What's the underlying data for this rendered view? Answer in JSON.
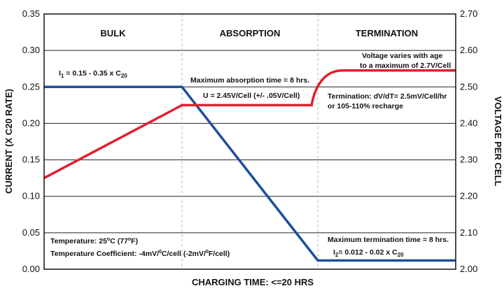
{
  "chart_data": {
    "type": "line",
    "title": "",
    "xlabel": "CHARGING TIME: <=20 HRS",
    "ylabel_left": "CURRENT (X C20 RATE)",
    "ylabel_right": "VOLTAGE PER CELL",
    "y_left": {
      "range": [
        0,
        0.35
      ],
      "ticks": [
        "0.00",
        "0.05",
        "0.10",
        "0.15",
        "0.20",
        "0.25",
        "0.30",
        "0.35"
      ]
    },
    "y_right": {
      "range": [
        2.0,
        2.7
      ],
      "ticks": [
        "2.00",
        "2.10",
        "2.20",
        "2.30",
        "2.40",
        "2.50",
        "2.60",
        "2.70"
      ]
    },
    "x_range": [
      0,
      20
    ],
    "grid": true,
    "phases": [
      {
        "label": "BULK",
        "x_start": 0,
        "x_end": 6.7
      },
      {
        "label": "ABSORPTION",
        "x_start": 6.7,
        "x_end": 13.3
      },
      {
        "label": "TERMINATION",
        "x_start": 13.3,
        "x_end": 20
      }
    ],
    "series": [
      {
        "color": "#1f4e9c",
        "axis": "left",
        "points": [
          [
            0,
            0.25
          ],
          [
            6.7,
            0.25
          ],
          [
            13.3,
            0.012
          ],
          [
            20,
            0.012
          ]
        ]
      },
      {
        "color": "#e0212e",
        "axis": "right",
        "points": [
          [
            0,
            2.25
          ],
          [
            6.7,
            2.45
          ],
          [
            13.0,
            2.45
          ]
        ],
        "curve_to": [
          [
            13.0,
            2.45
          ],
          [
            13.2,
            2.545
          ],
          [
            14.5,
            2.545
          ],
          [
            20,
            2.545
          ]
        ]
      }
    ],
    "annotations": {
      "i1": {
        "main": "I",
        "sub1": "1",
        "mid": " = 0.15 - 0.35 x C",
        "sub2": "20"
      },
      "max_absorption": "Maximum absorption time = 8 hrs.",
      "u_voltage": "U = 2.45V/Cell (+/- .05V/Cell)",
      "voltage_varies_1": "Voltage varies with age",
      "voltage_varies_2": "to a maximum of 2.7V/Cell",
      "termination_1": "Termination: dV/dT= 2.5mV/Cell/hr",
      "termination_2": "or 105-110% recharge",
      "temperature": {
        "a": "Temperature: 25",
        "deg": "o",
        "b": "C (77",
        "deg2": "o",
        "c": "F)"
      },
      "temp_coeff": {
        "a": "Temperature Coefficient: -4mV/",
        "sup1": "0",
        "b": "C/cell (-2mV/",
        "sup2": "0",
        "c": "F/cell)"
      },
      "max_termination": "Maximum termination time = 8 hrs.",
      "i2": {
        "main": "I",
        "sub1": "2",
        "mid": "= 0.012 - 0.02 x C",
        "sub2": "20"
      }
    }
  }
}
